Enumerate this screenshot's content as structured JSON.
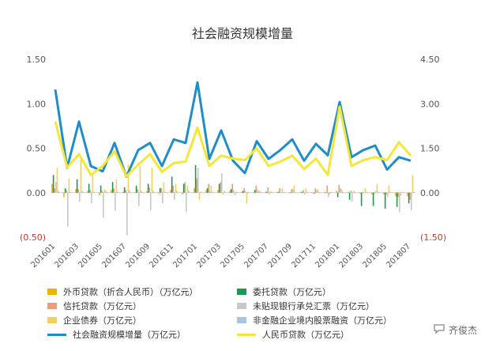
{
  "chart_data": {
    "type": "bar",
    "title": "社会融资规模增量",
    "left_axis": {
      "ticks": [
        "1.50",
        "1.00",
        "0.50",
        "0.00",
        "(0.50)"
      ],
      "range": [
        -0.5,
        1.5
      ]
    },
    "right_axis": {
      "ticks": [
        "4.50",
        "3.00",
        "1.50",
        "0.00",
        "(1.50)"
      ],
      "range": [
        -1.5,
        4.5
      ]
    },
    "x_tick_labels": [
      "201601",
      "201603",
      "201605",
      "201607",
      "201609",
      "201611",
      "201701",
      "201703",
      "201705",
      "201707",
      "201709",
      "201711",
      "201801",
      "201803",
      "201805",
      "201807"
    ],
    "categories": [
      "201601",
      "201602",
      "201603",
      "201604",
      "201605",
      "201606",
      "201607",
      "201608",
      "201609",
      "201610",
      "201611",
      "201612",
      "201701",
      "201702",
      "201703",
      "201704",
      "201705",
      "201706",
      "201707",
      "201708",
      "201709",
      "201710",
      "201711",
      "201712",
      "201801",
      "201802",
      "201803",
      "201804",
      "201805",
      "201806",
      "201807"
    ],
    "series": [
      {
        "name": "外币贷款（折合人民币）（万亿元）",
        "color": "#f0b400",
        "kind": "bar",
        "values": [
          0.1,
          -0.05,
          0.04,
          0.02,
          -0.03,
          0.03,
          0.01,
          0.0,
          0.02,
          -0.01,
          0.03,
          -0.02,
          0.05,
          0.03,
          0.03,
          0.02,
          0.01,
          0.0,
          0.01,
          0.01,
          0.0,
          0.01,
          0.0,
          0.01,
          0.02,
          0.01,
          -0.01,
          -0.02,
          -0.02,
          -0.04,
          -0.04
        ]
      },
      {
        "name": "委托贷款（万亿元）",
        "color": "#1a9a50",
        "kind": "bar",
        "values": [
          0.2,
          0.05,
          0.15,
          0.1,
          0.08,
          0.12,
          0.06,
          0.08,
          0.1,
          0.05,
          0.18,
          0.1,
          0.31,
          0.05,
          0.1,
          0.04,
          0.02,
          0.03,
          0.01,
          0.01,
          0.0,
          0.01,
          -0.01,
          0.0,
          -0.05,
          -0.08,
          -0.15,
          -0.15,
          -0.18,
          -0.16,
          -0.12
        ]
      },
      {
        "name": "信托贷款（万亿元）",
        "color": "#e8a07a",
        "kind": "bar",
        "values": [
          0.05,
          0.03,
          0.04,
          0.03,
          0.02,
          0.05,
          0.03,
          0.04,
          0.06,
          0.05,
          0.08,
          0.12,
          0.16,
          0.1,
          0.12,
          0.1,
          0.05,
          0.08,
          0.06,
          0.05,
          0.04,
          0.03,
          0.05,
          0.08,
          0.09,
          0.02,
          0.01,
          -0.01,
          -0.02,
          -0.05,
          -0.08
        ]
      },
      {
        "name": "未贴现银行承兑汇票（万亿元）",
        "color": "#c8c8c8",
        "kind": "bar",
        "values": [
          0.12,
          -0.38,
          -0.1,
          -0.12,
          -0.28,
          -0.2,
          -0.48,
          -0.15,
          -0.2,
          -0.12,
          -0.08,
          -0.22,
          0.28,
          0.02,
          0.22,
          0.03,
          0.02,
          0.04,
          -0.02,
          0.0,
          0.04,
          -0.02,
          0.03,
          -0.05,
          0.05,
          -0.1,
          0.0,
          0.02,
          -0.05,
          -0.22,
          -0.2
        ]
      },
      {
        "name": "企业债券（万亿元）",
        "color": "#f0d060",
        "kind": "bar",
        "values": [
          0.28,
          0.16,
          0.38,
          0.22,
          0.04,
          0.15,
          0.32,
          0.3,
          0.28,
          0.12,
          0.1,
          0.08,
          -0.08,
          0.08,
          -0.02,
          -0.03,
          -0.12,
          0.02,
          0.02,
          0.05,
          0.08,
          0.05,
          0.04,
          -0.02,
          0.04,
          0.02,
          0.05,
          0.1,
          0.08,
          -0.03,
          0.2
        ]
      },
      {
        "name": "非金融企业境内股票融资（万亿元）",
        "color": "#a8c4e0",
        "kind": "bar",
        "values": [
          0.02,
          0.01,
          0.02,
          0.01,
          0.02,
          0.01,
          0.02,
          0.02,
          0.02,
          0.01,
          0.02,
          0.02,
          0.01,
          0.01,
          0.02,
          0.01,
          0.01,
          0.02,
          0.01,
          0.01,
          0.01,
          0.01,
          0.01,
          0.01,
          0.01,
          0.01,
          0.01,
          0.01,
          0.01,
          0.01,
          0.01
        ]
      },
      {
        "name": "社会融资规模增量（万亿元）",
        "color": "#1f8ec8",
        "kind": "line",
        "axis": "left",
        "values": [
          1.16,
          0.28,
          0.8,
          0.3,
          0.24,
          0.56,
          0.18,
          0.48,
          0.56,
          0.3,
          0.6,
          0.56,
          1.24,
          0.38,
          0.7,
          0.36,
          0.22,
          0.58,
          0.38,
          0.48,
          0.6,
          0.36,
          0.55,
          0.42,
          1.02,
          0.4,
          0.48,
          0.53,
          0.26,
          0.4,
          0.36
        ]
      },
      {
        "name": "人民币贷款（万亿元）",
        "color": "#f4e73a",
        "kind": "line",
        "axis": "right",
        "values": [
          2.4,
          0.85,
          1.3,
          0.6,
          0.9,
          1.4,
          0.55,
          0.95,
          1.3,
          0.7,
          1.0,
          1.05,
          2.2,
          0.9,
          1.25,
          1.15,
          1.1,
          1.5,
          0.9,
          1.05,
          1.25,
          0.8,
          1.15,
          0.6,
          2.9,
          0.9,
          1.1,
          1.2,
          1.1,
          1.7,
          1.25
        ]
      }
    ]
  },
  "watermark": {
    "text": "齐俊杰",
    "icon": "speech-bubble-icon"
  }
}
